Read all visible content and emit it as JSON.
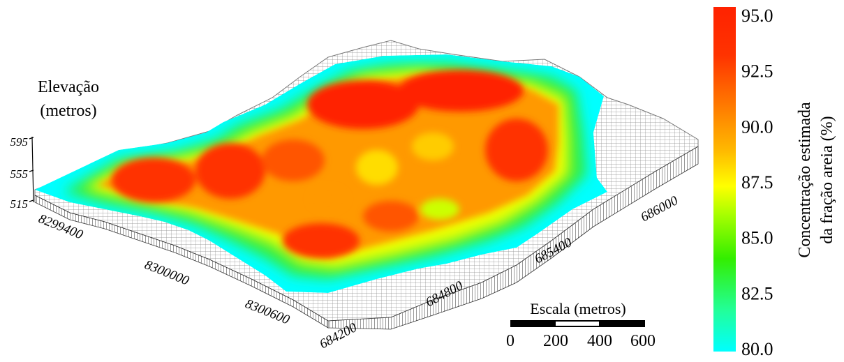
{
  "chart_data": {
    "type": "surface-3d",
    "title": "",
    "elevation_axis": {
      "label_line1": "Elevação",
      "label_line2": "(metros)",
      "ticks": [
        "595",
        "555",
        "515"
      ]
    },
    "northing_axis": {
      "ticks": [
        "8299400",
        "8300000",
        "8300600"
      ]
    },
    "easting_axis": {
      "ticks": [
        "684200",
        "684800",
        "685400",
        "686000"
      ]
    },
    "colorbar": {
      "label_line1": "Concentração estimada",
      "label_line2": "da fração areia (%)",
      "min": 80.0,
      "max": 95.0,
      "ticks": [
        "95.0",
        "92.5",
        "90.0",
        "87.5",
        "85.0",
        "82.5",
        "80.0"
      ],
      "colors": [
        "#00ffff",
        "#22ff88",
        "#33ee00",
        "#ccff00",
        "#ffff00",
        "#ffcc00",
        "#ff9900",
        "#ff5500",
        "#ff2200"
      ]
    },
    "scale_bar": {
      "title": "Escala (metros)",
      "ticks": [
        "0",
        "200",
        "400",
        "600"
      ]
    }
  }
}
